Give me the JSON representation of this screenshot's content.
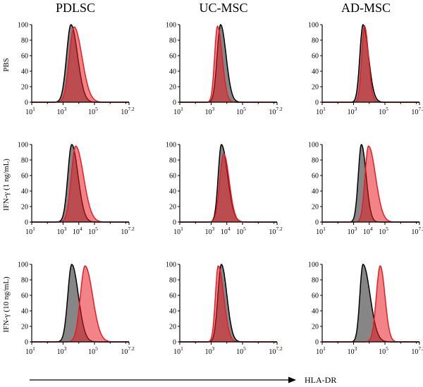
{
  "figure": {
    "column_titles": [
      "PDLSC",
      "UC-MSC",
      "AD-MSC"
    ],
    "row_labels": [
      "PBS",
      "IFN-γ (1 ng/mL)",
      "IFN-γ (10 ng/mL)"
    ],
    "x_axis_label": "HLA-DR"
  },
  "colors": {
    "control": "#000000",
    "stained": "#e41e26"
  },
  "chart_data": {
    "type": "area",
    "xscale": "log10",
    "xlim": [
      1,
      7.2
    ],
    "ylim": [
      0,
      100
    ],
    "ytick_labels": [
      "0",
      "20",
      "40",
      "60",
      "80",
      "100"
    ],
    "ytick_values": [
      0,
      20,
      40,
      60,
      80,
      100
    ],
    "panels": [
      {
        "col": 0,
        "row": 0,
        "xtick_labels": [
          "10^1",
          "10^3",
          "10^5",
          "10^7.2"
        ],
        "xtick_values": [
          1,
          3,
          5,
          7.2
        ],
        "series": [
          {
            "color": "#000000",
            "peak_log": 3.5,
            "width_left": 0.28,
            "width_right": 0.42,
            "peak": 100
          },
          {
            "color": "#e41e26",
            "peak_log": 3.7,
            "width_left": 0.3,
            "width_right": 0.5,
            "peak": 97
          }
        ]
      },
      {
        "col": 1,
        "row": 0,
        "xtick_labels": [
          "10^1",
          "10^3",
          "10^5",
          "10^7.2"
        ],
        "xtick_values": [
          1,
          3,
          5,
          7.2
        ],
        "series": [
          {
            "color": "#000000",
            "peak_log": 3.6,
            "width_left": 0.22,
            "width_right": 0.35,
            "peak": 100
          },
          {
            "color": "#e41e26",
            "peak_log": 3.4,
            "width_left": 0.18,
            "width_right": 0.3,
            "peak": 98
          }
        ]
      },
      {
        "col": 2,
        "row": 0,
        "xtick_labels": [
          "10^1",
          "10^3",
          "10^5",
          "10^7.2"
        ],
        "xtick_values": [
          1,
          3,
          5,
          7.2
        ],
        "series": [
          {
            "color": "#000000",
            "peak_log": 3.6,
            "width_left": 0.2,
            "width_right": 0.35,
            "peak": 100
          },
          {
            "color": "#e41e26",
            "peak_log": 3.7,
            "width_left": 0.18,
            "width_right": 0.25,
            "peak": 98
          }
        ]
      },
      {
        "col": 0,
        "row": 1,
        "xtick_labels": [
          "10^1",
          "10^3",
          "10^4",
          "10^5",
          "10^7.2"
        ],
        "xtick_values": [
          1,
          3,
          4,
          5,
          7.2
        ],
        "series": [
          {
            "color": "#000000",
            "peak_log": 3.55,
            "width_left": 0.25,
            "width_right": 0.4,
            "peak": 100
          },
          {
            "color": "#e41e26",
            "peak_log": 3.8,
            "width_left": 0.28,
            "width_right": 0.5,
            "peak": 98
          }
        ]
      },
      {
        "col": 1,
        "row": 1,
        "xtick_labels": [
          "10^1",
          "10^3",
          "10^4",
          "10^5",
          "10^7.2"
        ],
        "xtick_values": [
          1,
          3,
          4,
          5,
          7.2
        ],
        "series": [
          {
            "color": "#000000",
            "peak_log": 3.65,
            "width_left": 0.2,
            "width_right": 0.4,
            "peak": 100
          },
          {
            "color": "#e41e26",
            "peak_log": 3.8,
            "width_left": 0.25,
            "width_right": 0.35,
            "peak": 88
          }
        ]
      },
      {
        "col": 2,
        "row": 1,
        "xtick_labels": [
          "10^1",
          "10^3",
          "10^4",
          "10^5",
          "10^7.2"
        ],
        "xtick_values": [
          1,
          3,
          4,
          5,
          7.2
        ],
        "series": [
          {
            "color": "#000000",
            "peak_log": 3.5,
            "width_left": 0.2,
            "width_right": 0.3,
            "peak": 100
          },
          {
            "color": "#e41e26",
            "peak_log": 3.95,
            "width_left": 0.22,
            "width_right": 0.45,
            "peak": 98
          }
        ]
      },
      {
        "col": 0,
        "row": 2,
        "xtick_labels": [
          "10^1",
          "10^3",
          "10^5",
          "10^7.2"
        ],
        "xtick_values": [
          1,
          3,
          5,
          7.2
        ],
        "series": [
          {
            "color": "#000000",
            "peak_log": 3.55,
            "width_left": 0.25,
            "width_right": 0.42,
            "peak": 100
          },
          {
            "color": "#e41e26",
            "peak_log": 4.4,
            "width_left": 0.3,
            "width_right": 0.48,
            "peak": 98
          }
        ]
      },
      {
        "col": 1,
        "row": 2,
        "xtick_labels": [
          "10^1",
          "10^3",
          "10^5",
          "10^7.2"
        ],
        "xtick_values": [
          1,
          3,
          5,
          7.2
        ],
        "series": [
          {
            "color": "#000000",
            "peak_log": 3.65,
            "width_left": 0.22,
            "width_right": 0.35,
            "peak": 100
          },
          {
            "color": "#e41e26",
            "peak_log": 3.45,
            "width_left": 0.18,
            "width_right": 0.35,
            "peak": 98
          }
        ]
      },
      {
        "col": 2,
        "row": 2,
        "xtick_labels": [
          "10^1",
          "10^3",
          "10^5",
          "10^7.2"
        ],
        "xtick_values": [
          1,
          3,
          5,
          7.2
        ],
        "series": [
          {
            "color": "#000000",
            "peak_log": 3.6,
            "width_left": 0.2,
            "width_right": 0.45,
            "peak": 100
          },
          {
            "color": "#e41e26",
            "peak_log": 4.7,
            "width_left": 0.25,
            "width_right": 0.3,
            "peak": 98
          }
        ]
      }
    ]
  }
}
